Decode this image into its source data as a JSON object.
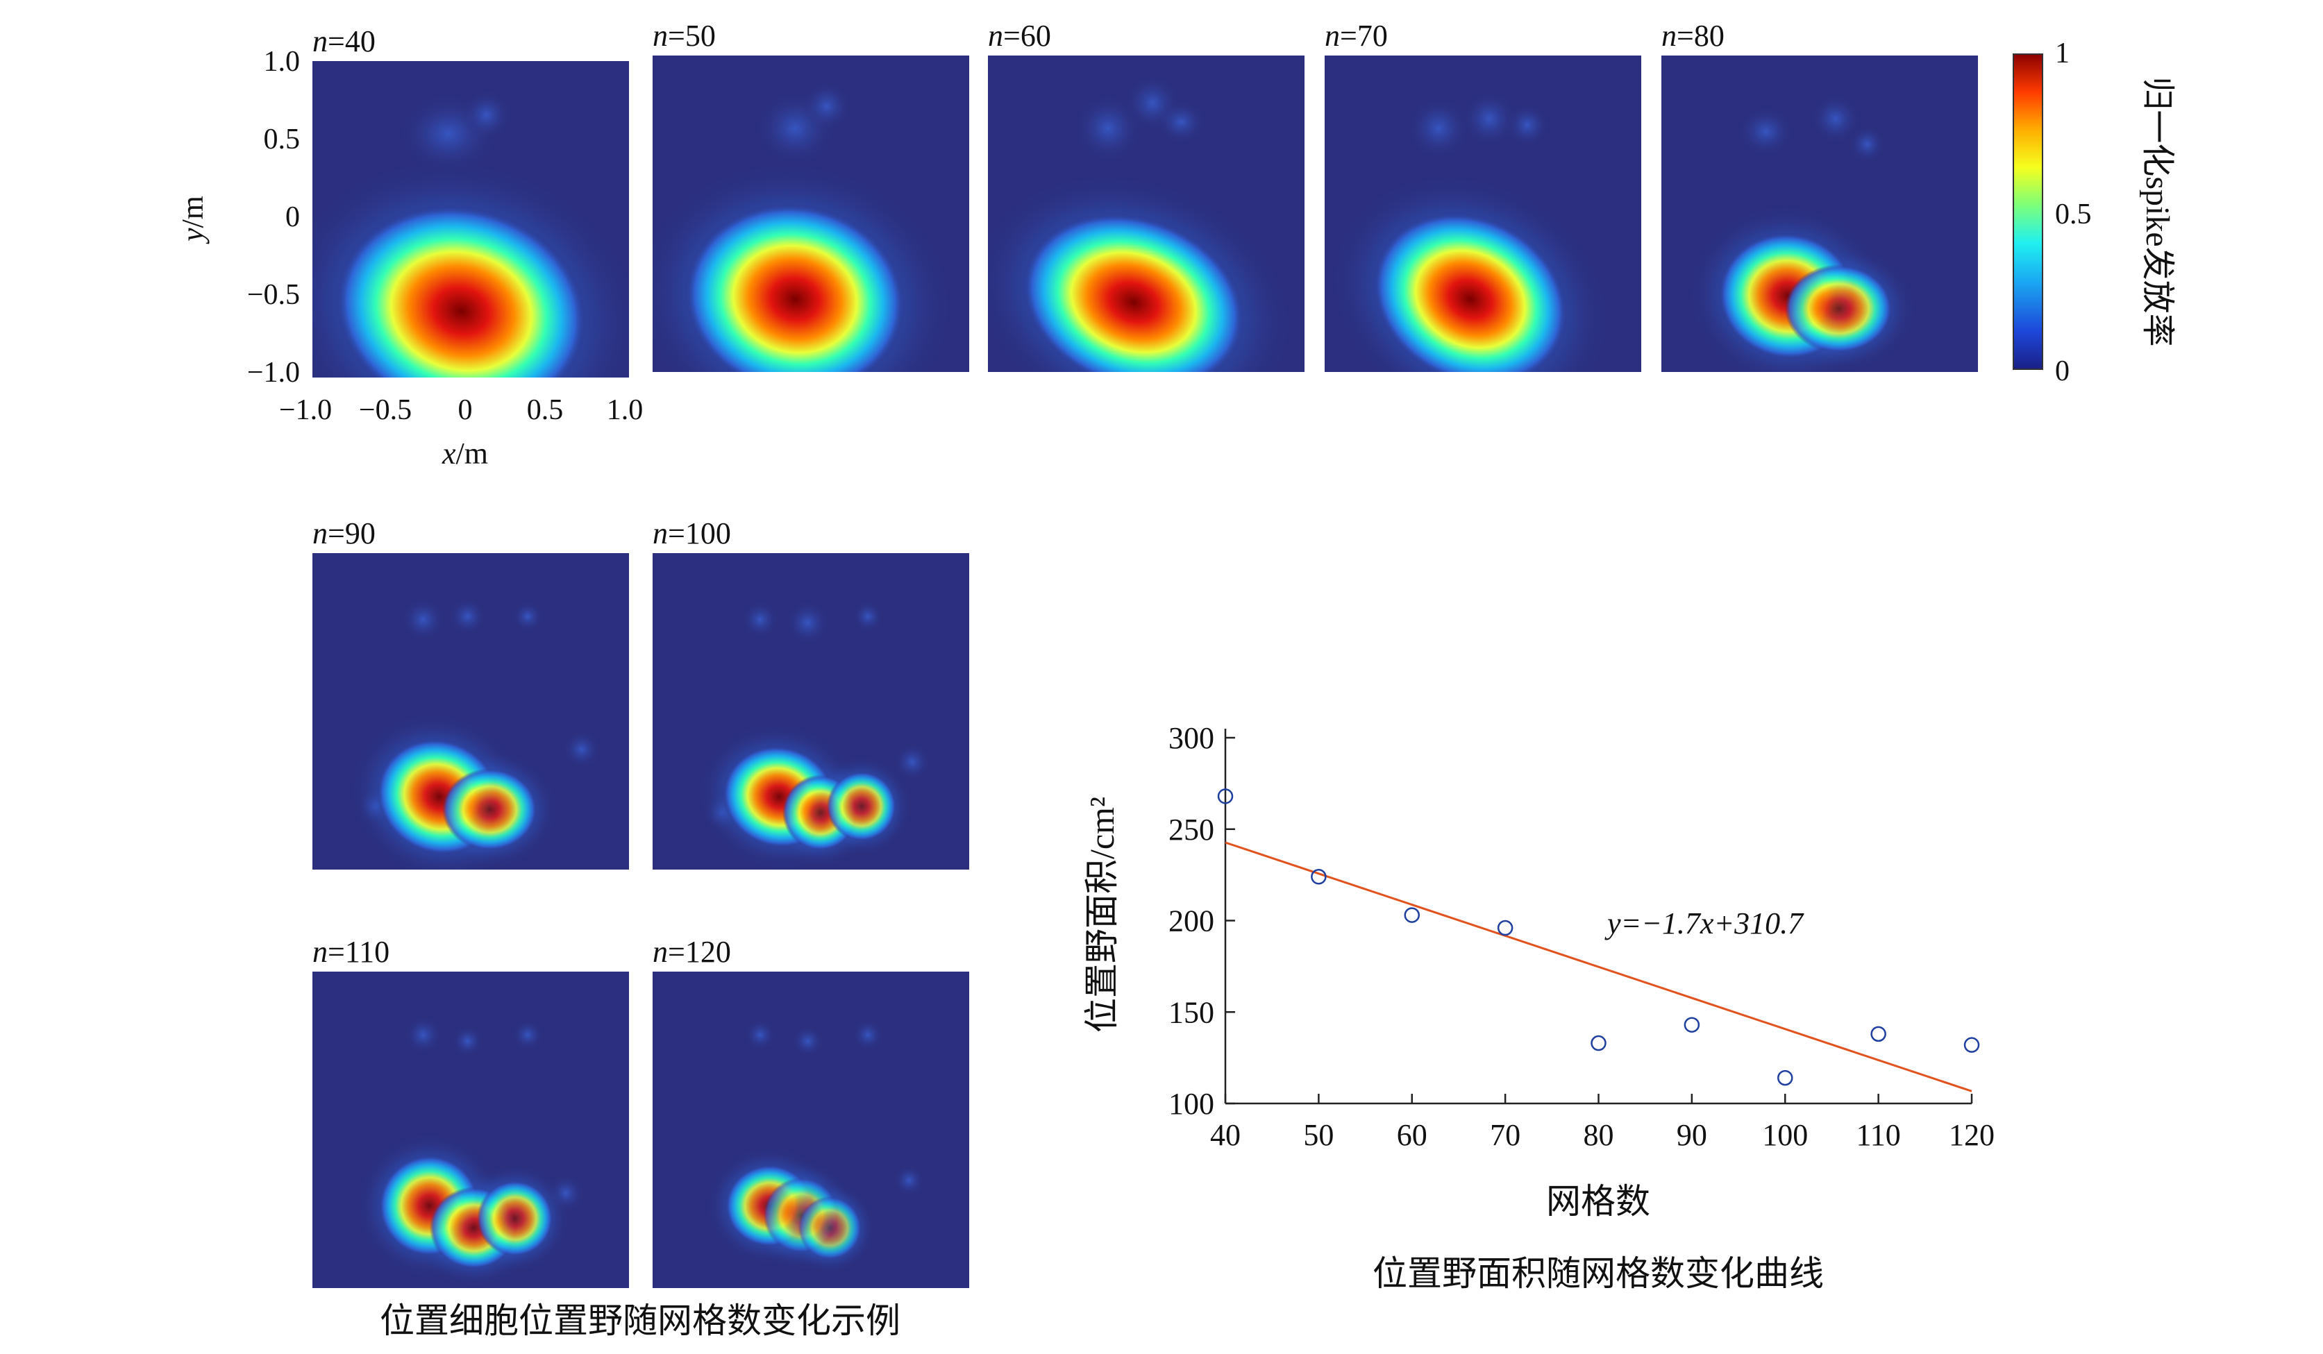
{
  "heatmaps": {
    "panels": [
      {
        "label_var": "n",
        "label_val": "=40"
      },
      {
        "label_var": "n",
        "label_val": "=50"
      },
      {
        "label_var": "n",
        "label_val": "=60"
      },
      {
        "label_var": "n",
        "label_val": "=70"
      },
      {
        "label_var": "n",
        "label_val": "=80"
      },
      {
        "label_var": "n",
        "label_val": "=90"
      },
      {
        "label_var": "n",
        "label_val": "=100"
      },
      {
        "label_var": "n",
        "label_val": "=110"
      },
      {
        "label_var": "n",
        "label_val": "=120"
      }
    ],
    "x_ticks": [
      "−1.0",
      "−0.5",
      "0",
      "0.5",
      "1.0"
    ],
    "y_ticks": [
      "1.0",
      "0.5",
      "0",
      "−0.5",
      "−1.0"
    ],
    "xlabel_var": "x",
    "xlabel_unit": "/m",
    "ylabel_var": "y",
    "ylabel_unit": "/m",
    "colorbar": {
      "ticks": [
        "1",
        "0.5",
        "0"
      ],
      "label": "归一化spike发放率"
    },
    "caption": "位置细胞位置野随网格数变化示例"
  },
  "chart_data": {
    "type": "scatter",
    "title": "位置野面积随网格数变化曲线",
    "xlabel": "网格数",
    "ylabel": "位置野面积/cm²",
    "x": [
      40,
      50,
      60,
      70,
      80,
      90,
      100,
      110,
      120
    ],
    "y": [
      268,
      224,
      203,
      196,
      133,
      143,
      114,
      138,
      132
    ],
    "xlim": [
      40,
      120
    ],
    "ylim": [
      100,
      300
    ],
    "x_ticks": [
      40,
      50,
      60,
      70,
      80,
      90,
      100,
      110,
      120
    ],
    "y_ticks": [
      100,
      150,
      200,
      250,
      300
    ],
    "fit": {
      "slope": -1.7,
      "intercept": 310.7
    },
    "equation": "y=−1.7x+310.7",
    "point_color": "#1f3f9f",
    "line_color": "#e0531f"
  },
  "colors": {
    "heatmap_background": "#2b2f7e",
    "fit_line": "#e0531f",
    "scatter_points": "#1f3f9f"
  }
}
